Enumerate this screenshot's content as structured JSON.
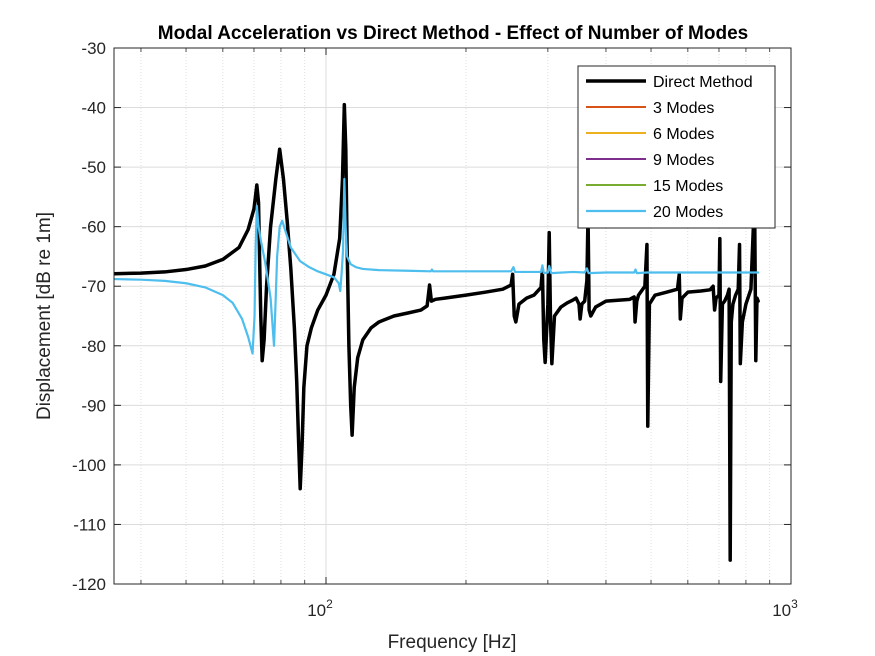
{
  "chart_data": {
    "type": "line",
    "title": "Modal Acceleration vs Direct Method - Effect of Number of Modes",
    "xlabel": "Frequency [Hz]",
    "ylabel": "Displacement [dB re 1m]",
    "xscale": "log",
    "xlim": [
      35,
      1000
    ],
    "ylim": [
      -120,
      -30
    ],
    "yticks": [
      -120,
      -110,
      -100,
      -90,
      -80,
      -70,
      -60,
      -50,
      -40,
      -30
    ],
    "xtick_labels": [
      {
        "value": 100,
        "base": "10",
        "exp": "2"
      },
      {
        "value": 1000,
        "base": "10",
        "exp": "3"
      }
    ],
    "grid": true,
    "minor_grid": true,
    "legend_position": "top-right",
    "legend": [
      "Direct Method",
      "3 Modes",
      "6 Modes",
      "9 Modes",
      "15 Modes",
      "20 Modes"
    ],
    "series": [
      {
        "name": "Direct Method",
        "color": "#000000",
        "width": 3.5,
        "points": [
          [
            35,
            -67.9
          ],
          [
            40,
            -67.8
          ],
          [
            45,
            -67.6
          ],
          [
            50,
            -67.2
          ],
          [
            55,
            -66.6
          ],
          [
            60,
            -65.5
          ],
          [
            65,
            -63.5
          ],
          [
            68,
            -60.5
          ],
          [
            70,
            -57.0
          ],
          [
            71,
            -53.0
          ],
          [
            71.6,
            -56
          ],
          [
            72,
            -66
          ],
          [
            72.4,
            -75
          ],
          [
            72.9,
            -82.5
          ],
          [
            73.6,
            -79
          ],
          [
            74.5,
            -70
          ],
          [
            76,
            -60
          ],
          [
            78,
            -52
          ],
          [
            79.5,
            -47
          ],
          [
            81,
            -52
          ],
          [
            82.5,
            -59
          ],
          [
            84,
            -67
          ],
          [
            85.5,
            -77
          ],
          [
            86.5,
            -86
          ],
          [
            87.3,
            -96
          ],
          [
            88,
            -104
          ],
          [
            88.8,
            -97
          ],
          [
            89.6,
            -87
          ],
          [
            91,
            -80
          ],
          [
            93,
            -77
          ],
          [
            96,
            -74
          ],
          [
            100,
            -71.5
          ],
          [
            104,
            -68
          ],
          [
            107,
            -62
          ],
          [
            108.5,
            -52
          ],
          [
            109.5,
            -39.5
          ],
          [
            110.3,
            -47
          ],
          [
            111,
            -63
          ],
          [
            112,
            -80
          ],
          [
            113,
            -90
          ],
          [
            113.8,
            -95
          ],
          [
            115,
            -87
          ],
          [
            117,
            -82
          ],
          [
            120,
            -79
          ],
          [
            125,
            -77
          ],
          [
            130,
            -76
          ],
          [
            140,
            -75
          ],
          [
            150,
            -74.5
          ],
          [
            160,
            -74
          ],
          [
            165,
            -73.3
          ],
          [
            167,
            -69.8
          ],
          [
            168.5,
            -72.5
          ],
          [
            172,
            -72.2
          ],
          [
            180,
            -72
          ],
          [
            200,
            -71.5
          ],
          [
            220,
            -71
          ],
          [
            240,
            -70.5
          ],
          [
            250,
            -69.8
          ],
          [
            252,
            -68
          ],
          [
            254,
            -75
          ],
          [
            256,
            -76
          ],
          [
            260,
            -73
          ],
          [
            270,
            -72
          ],
          [
            280,
            -71.5
          ],
          [
            290,
            -70.2
          ],
          [
            292,
            -67.2
          ],
          [
            294,
            -79
          ],
          [
            296,
            -82.8
          ],
          [
            300,
            -73
          ],
          [
            302,
            -61
          ],
          [
            304,
            -76
          ],
          [
            306,
            -83
          ],
          [
            310,
            -75
          ],
          [
            320,
            -73.5
          ],
          [
            330,
            -72.8
          ],
          [
            340,
            -72.3
          ],
          [
            345,
            -72
          ],
          [
            350,
            -73
          ],
          [
            352,
            -75.5
          ],
          [
            355,
            -73
          ],
          [
            360,
            -72.5
          ],
          [
            364,
            -69
          ],
          [
            366,
            -58
          ],
          [
            368,
            -74
          ],
          [
            371,
            -75
          ],
          [
            380,
            -73.5
          ],
          [
            400,
            -72.5
          ],
          [
            450,
            -72.2
          ],
          [
            460,
            -71.8
          ],
          [
            462,
            -76
          ],
          [
            466,
            -72.5
          ],
          [
            470,
            -71.5
          ],
          [
            485,
            -70
          ],
          [
            490,
            -63
          ],
          [
            492,
            -93.5
          ],
          [
            496,
            -73
          ],
          [
            510,
            -71.5
          ],
          [
            540,
            -71
          ],
          [
            570,
            -70.5
          ],
          [
            575,
            -68
          ],
          [
            578,
            -75.5
          ],
          [
            583,
            -72
          ],
          [
            600,
            -71
          ],
          [
            640,
            -70.8
          ],
          [
            670,
            -70.6
          ],
          [
            680,
            -70
          ],
          [
            685,
            -74
          ],
          [
            690,
            -72
          ],
          [
            700,
            -71.5
          ],
          [
            703,
            -62
          ],
          [
            706,
            -86
          ],
          [
            712,
            -73
          ],
          [
            720,
            -72.5
          ],
          [
            730,
            -71.5
          ],
          [
            736,
            -70.5
          ],
          [
            740,
            -116
          ],
          [
            744,
            -76
          ],
          [
            750,
            -73
          ],
          [
            760,
            -71.5
          ],
          [
            770,
            -70.5
          ],
          [
            775,
            -63
          ],
          [
            778,
            -83
          ],
          [
            786,
            -76
          ],
          [
            800,
            -73
          ],
          [
            820,
            -70.5
          ],
          [
            830,
            -60
          ],
          [
            835,
            -55
          ],
          [
            840,
            -82.5
          ],
          [
            845,
            -72
          ],
          [
            850,
            -72.5
          ]
        ]
      },
      {
        "name": "20 Modes",
        "color": "#4DBEEE",
        "width": 2.2,
        "points": [
          [
            35,
            -68.8
          ],
          [
            40,
            -68.9
          ],
          [
            45,
            -69.1
          ],
          [
            50,
            -69.5
          ],
          [
            55,
            -70.2
          ],
          [
            60,
            -71.5
          ],
          [
            63,
            -72.8
          ],
          [
            66,
            -75.5
          ],
          [
            68,
            -78.5
          ],
          [
            69.5,
            -81.3
          ],
          [
            70.2,
            -75
          ],
          [
            70.6,
            -63
          ],
          [
            71,
            -56.5
          ],
          [
            71.6,
            -60
          ],
          [
            72.5,
            -62.5
          ],
          [
            74,
            -66
          ],
          [
            76,
            -72
          ],
          [
            77.3,
            -80
          ],
          [
            77.8,
            -74
          ],
          [
            78.5,
            -65
          ],
          [
            79.5,
            -60
          ],
          [
            80.5,
            -59
          ],
          [
            82,
            -61
          ],
          [
            84,
            -63.5
          ],
          [
            88,
            -65.8
          ],
          [
            92,
            -66.8
          ],
          [
            96,
            -67.5
          ],
          [
            100,
            -68
          ],
          [
            104,
            -68.5
          ],
          [
            106.5,
            -69.5
          ],
          [
            107.3,
            -70.8
          ],
          [
            108,
            -68
          ],
          [
            108.8,
            -64
          ],
          [
            109.5,
            -52
          ],
          [
            110.2,
            -60
          ],
          [
            111,
            -65
          ],
          [
            113,
            -66.3
          ],
          [
            116,
            -66.8
          ],
          [
            120,
            -67.1
          ],
          [
            130,
            -67.3
          ],
          [
            150,
            -67.4
          ],
          [
            168,
            -67.5
          ],
          [
            169,
            -67.2
          ],
          [
            170,
            -67.5
          ],
          [
            200,
            -67.5
          ],
          [
            250,
            -67.5
          ],
          [
            253,
            -66.8
          ],
          [
            255,
            -67.6
          ],
          [
            290,
            -67.6
          ],
          [
            292,
            -66.5
          ],
          [
            294,
            -67.8
          ],
          [
            300,
            -67.7
          ],
          [
            302,
            -66.6
          ],
          [
            305,
            -67.8
          ],
          [
            340,
            -67.6
          ],
          [
            360,
            -67.7
          ],
          [
            364,
            -67.0
          ],
          [
            367,
            -67.8
          ],
          [
            400,
            -67.7
          ],
          [
            460,
            -67.7
          ],
          [
            463,
            -67.2
          ],
          [
            466,
            -67.8
          ],
          [
            490,
            -67.7
          ],
          [
            500,
            -67.7
          ],
          [
            580,
            -67.7
          ],
          [
            700,
            -67.7
          ],
          [
            740,
            -67.7
          ],
          [
            850,
            -67.7
          ]
        ]
      },
      {
        "name": "3 Modes",
        "color": "#D95319",
        "width": 1.5,
        "points": []
      },
      {
        "name": "6 Modes",
        "color": "#EDB120",
        "width": 1.5,
        "points": []
      },
      {
        "name": "9 Modes",
        "color": "#7E2F8E",
        "width": 1.5,
        "points": []
      },
      {
        "name": "15 Modes",
        "color": "#77AC30",
        "width": 1.5,
        "points": []
      }
    ]
  }
}
